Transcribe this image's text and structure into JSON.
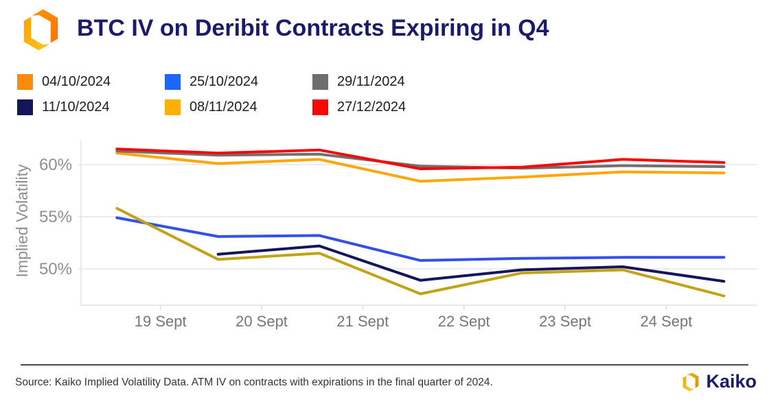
{
  "header": {
    "title": "BTC IV on Deribit Contracts Expiring in Q4"
  },
  "chart_data": {
    "type": "line",
    "title": "BTC IV on Deribit Contracts Expiring in Q4",
    "ylabel": "Implied Volatility",
    "xlabel": "",
    "grid": "horizontal",
    "legend_position": "top-left",
    "x": [
      18.57,
      19.57,
      20.57,
      21.57,
      22.57,
      23.57,
      24.57
    ],
    "x_ticks": [
      19,
      20,
      21,
      22,
      23,
      24
    ],
    "x_tick_labels": [
      "19 Sept",
      "20 Sept",
      "21 Sept",
      "22 Sept",
      "23 Sept",
      "24 Sept"
    ],
    "xlim": [
      18.215,
      24.9
    ],
    "y_ticks": [
      60,
      55,
      50
    ],
    "y_tick_labels": [
      "60%",
      "55%",
      "50%"
    ],
    "ylim": [
      46.5,
      62.3
    ],
    "series": [
      {
        "name": "04/10/2024",
        "legend_color": "#FB8B0B",
        "line_color": "#C2A315",
        "values": [
          55.8,
          50.9,
          51.5,
          47.6,
          49.6,
          49.9,
          47.4
        ]
      },
      {
        "name": "11/10/2024",
        "legend_color": "#15155C",
        "line_color": "#15155C",
        "values": [
          null,
          51.4,
          52.2,
          48.9,
          49.9,
          50.2,
          48.8
        ]
      },
      {
        "name": "25/10/2024",
        "legend_color": "#1F66F8",
        "line_color": "#3350E8",
        "values": [
          54.9,
          53.1,
          53.2,
          50.8,
          51.0,
          51.1,
          51.1
        ]
      },
      {
        "name": "08/11/2024",
        "legend_color": "#FFB008",
        "line_color": "#FFA70A",
        "values": [
          61.1,
          60.1,
          60.5,
          58.4,
          58.8,
          59.3,
          59.2
        ]
      },
      {
        "name": "29/11/2024",
        "legend_color": "#6E6E6E",
        "line_color": "#717171",
        "values": [
          61.3,
          60.9,
          61.0,
          59.85,
          59.65,
          59.9,
          59.8
        ]
      },
      {
        "name": "27/12/2024",
        "legend_color": "#F70707",
        "line_color": "#F70707",
        "values": [
          61.5,
          61.1,
          61.4,
          59.6,
          59.75,
          60.5,
          60.2
        ]
      }
    ]
  },
  "footer": {
    "source_text": "Source: Kaiko Implied Volatility Data. ATM IV on contracts with expirations in the final quarter of 2024.",
    "brand": "Kaiko"
  }
}
